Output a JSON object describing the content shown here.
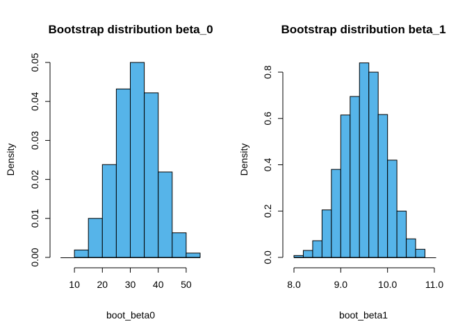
{
  "colors": {
    "bar_fill": "#56B4E9",
    "bar_stroke": "#000000",
    "background": "#ffffff"
  },
  "chart_data": [
    {
      "type": "bar",
      "title": "Bootstrap distribution beta_0",
      "xlabel": "boot_beta0",
      "ylabel": "Density",
      "bin_edges": [
        10,
        15,
        20,
        25,
        30,
        35,
        40,
        45,
        50,
        55
      ],
      "values": [
        0.0019,
        0.01,
        0.0238,
        0.0432,
        0.05,
        0.0422,
        0.0219,
        0.0063,
        0.0011
      ],
      "xlim": [
        5,
        55
      ],
      "ylim": [
        0,
        0.05
      ],
      "x_ticks": [
        10,
        20,
        30,
        40,
        50
      ],
      "x_tick_labels": [
        "10",
        "20",
        "30",
        "40",
        "50"
      ],
      "y_ticks": [
        0,
        0.01,
        0.02,
        0.03,
        0.04,
        0.05
      ],
      "y_tick_labels": [
        "0.00",
        "0.01",
        "0.02",
        "0.03",
        "0.04",
        "0.05"
      ],
      "grid": false
    },
    {
      "type": "bar",
      "title": "Bootstrap distribution beta_1",
      "xlabel": "boot_beta1",
      "ylabel": "Density",
      "bin_edges": [
        8.0,
        8.2,
        8.4,
        8.6,
        8.8,
        9.0,
        9.2,
        9.4,
        9.6,
        9.8,
        10.0,
        10.2,
        10.4,
        10.6,
        10.8
      ],
      "values": [
        0.008,
        0.03,
        0.072,
        0.205,
        0.38,
        0.615,
        0.695,
        0.84,
        0.8,
        0.617,
        0.42,
        0.2,
        0.08,
        0.035
      ],
      "xlim": [
        8.0,
        11.0
      ],
      "ylim": [
        0,
        0.8
      ],
      "x_ticks": [
        8.0,
        9.0,
        10.0,
        11.0
      ],
      "x_tick_labels": [
        "8.0",
        "9.0",
        "10.0",
        "11.0"
      ],
      "y_ticks": [
        0,
        0.2,
        0.4,
        0.6,
        0.8
      ],
      "y_tick_labels": [
        "0.0",
        "0.2",
        "0.4",
        "0.6",
        "0.8"
      ],
      "grid": false
    }
  ]
}
